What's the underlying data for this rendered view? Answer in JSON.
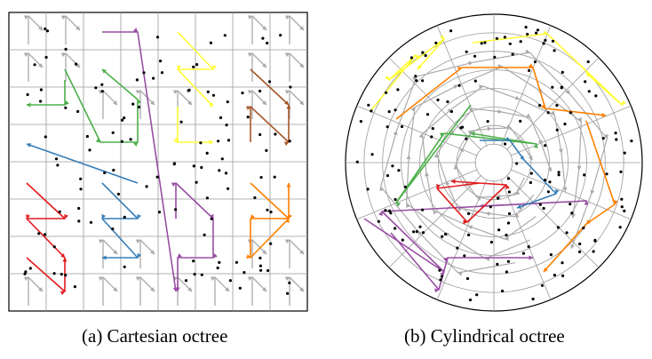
{
  "captions": {
    "a": "(a) Cartesian octree",
    "b": "(b) Cylindrical octree"
  },
  "colors": {
    "grid": "#9a9a9a",
    "frame": "#000000",
    "point": "#000000",
    "gray": "#aaaaaa",
    "green": "#4daf4a",
    "purple": "#984ea3",
    "yellow": "#ffff33",
    "brown": "#a65628",
    "blue": "#377eb8",
    "red": "#e41a1c",
    "orange": "#ff7f00"
  }
}
